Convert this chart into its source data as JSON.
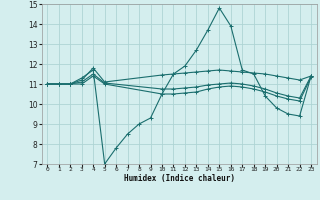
{
  "xlabel": "Humidex (Indice chaleur)",
  "bg_color": "#d4eeee",
  "grid_color": "#aed4d4",
  "line_color": "#1a6e6e",
  "xlim": [
    -0.5,
    23.5
  ],
  "ylim": [
    7,
    15
  ],
  "xticks": [
    0,
    1,
    2,
    3,
    4,
    5,
    6,
    7,
    8,
    9,
    10,
    11,
    12,
    13,
    14,
    15,
    16,
    17,
    18,
    19,
    20,
    21,
    22,
    23
  ],
  "yticks": [
    7,
    8,
    9,
    10,
    11,
    12,
    13,
    14,
    15
  ],
  "series": [
    {
      "x": [
        0,
        1,
        2,
        3,
        4,
        5,
        6,
        7,
        8,
        9,
        10,
        11,
        12,
        13,
        14,
        15,
        16,
        17,
        18,
        19,
        20,
        21,
        22,
        23
      ],
      "y": [
        11,
        11,
        11,
        11.3,
        11.7,
        7.0,
        7.8,
        8.5,
        9.0,
        9.3,
        10.5,
        11.5,
        11.9,
        12.7,
        13.7,
        14.8,
        13.9,
        11.7,
        11.5,
        10.4,
        9.8,
        9.5,
        9.4,
        11.4
      ]
    },
    {
      "x": [
        0,
        1,
        2,
        3,
        4,
        5,
        10,
        11,
        12,
        13,
        14,
        15,
        16,
        17,
        18,
        19,
        20,
        21,
        22,
        23
      ],
      "y": [
        11,
        11,
        11,
        11.2,
        11.8,
        11.1,
        11.45,
        11.5,
        11.55,
        11.6,
        11.65,
        11.7,
        11.65,
        11.6,
        11.55,
        11.5,
        11.4,
        11.3,
        11.2,
        11.4
      ]
    },
    {
      "x": [
        0,
        1,
        2,
        3,
        4,
        5,
        10,
        11,
        12,
        13,
        14,
        15,
        16,
        17,
        18,
        19,
        20,
        21,
        22,
        23
      ],
      "y": [
        11,
        11,
        11,
        11.1,
        11.5,
        11.05,
        10.75,
        10.75,
        10.8,
        10.85,
        10.95,
        11.0,
        11.05,
        11.0,
        10.9,
        10.75,
        10.55,
        10.4,
        10.3,
        11.4
      ]
    },
    {
      "x": [
        0,
        1,
        2,
        3,
        4,
        5,
        10,
        11,
        12,
        13,
        14,
        15,
        16,
        17,
        18,
        19,
        20,
        21,
        22,
        23
      ],
      "y": [
        11,
        11,
        11,
        11.0,
        11.4,
        11.0,
        10.5,
        10.5,
        10.55,
        10.6,
        10.75,
        10.85,
        10.9,
        10.85,
        10.75,
        10.6,
        10.4,
        10.25,
        10.15,
        11.35
      ]
    }
  ]
}
